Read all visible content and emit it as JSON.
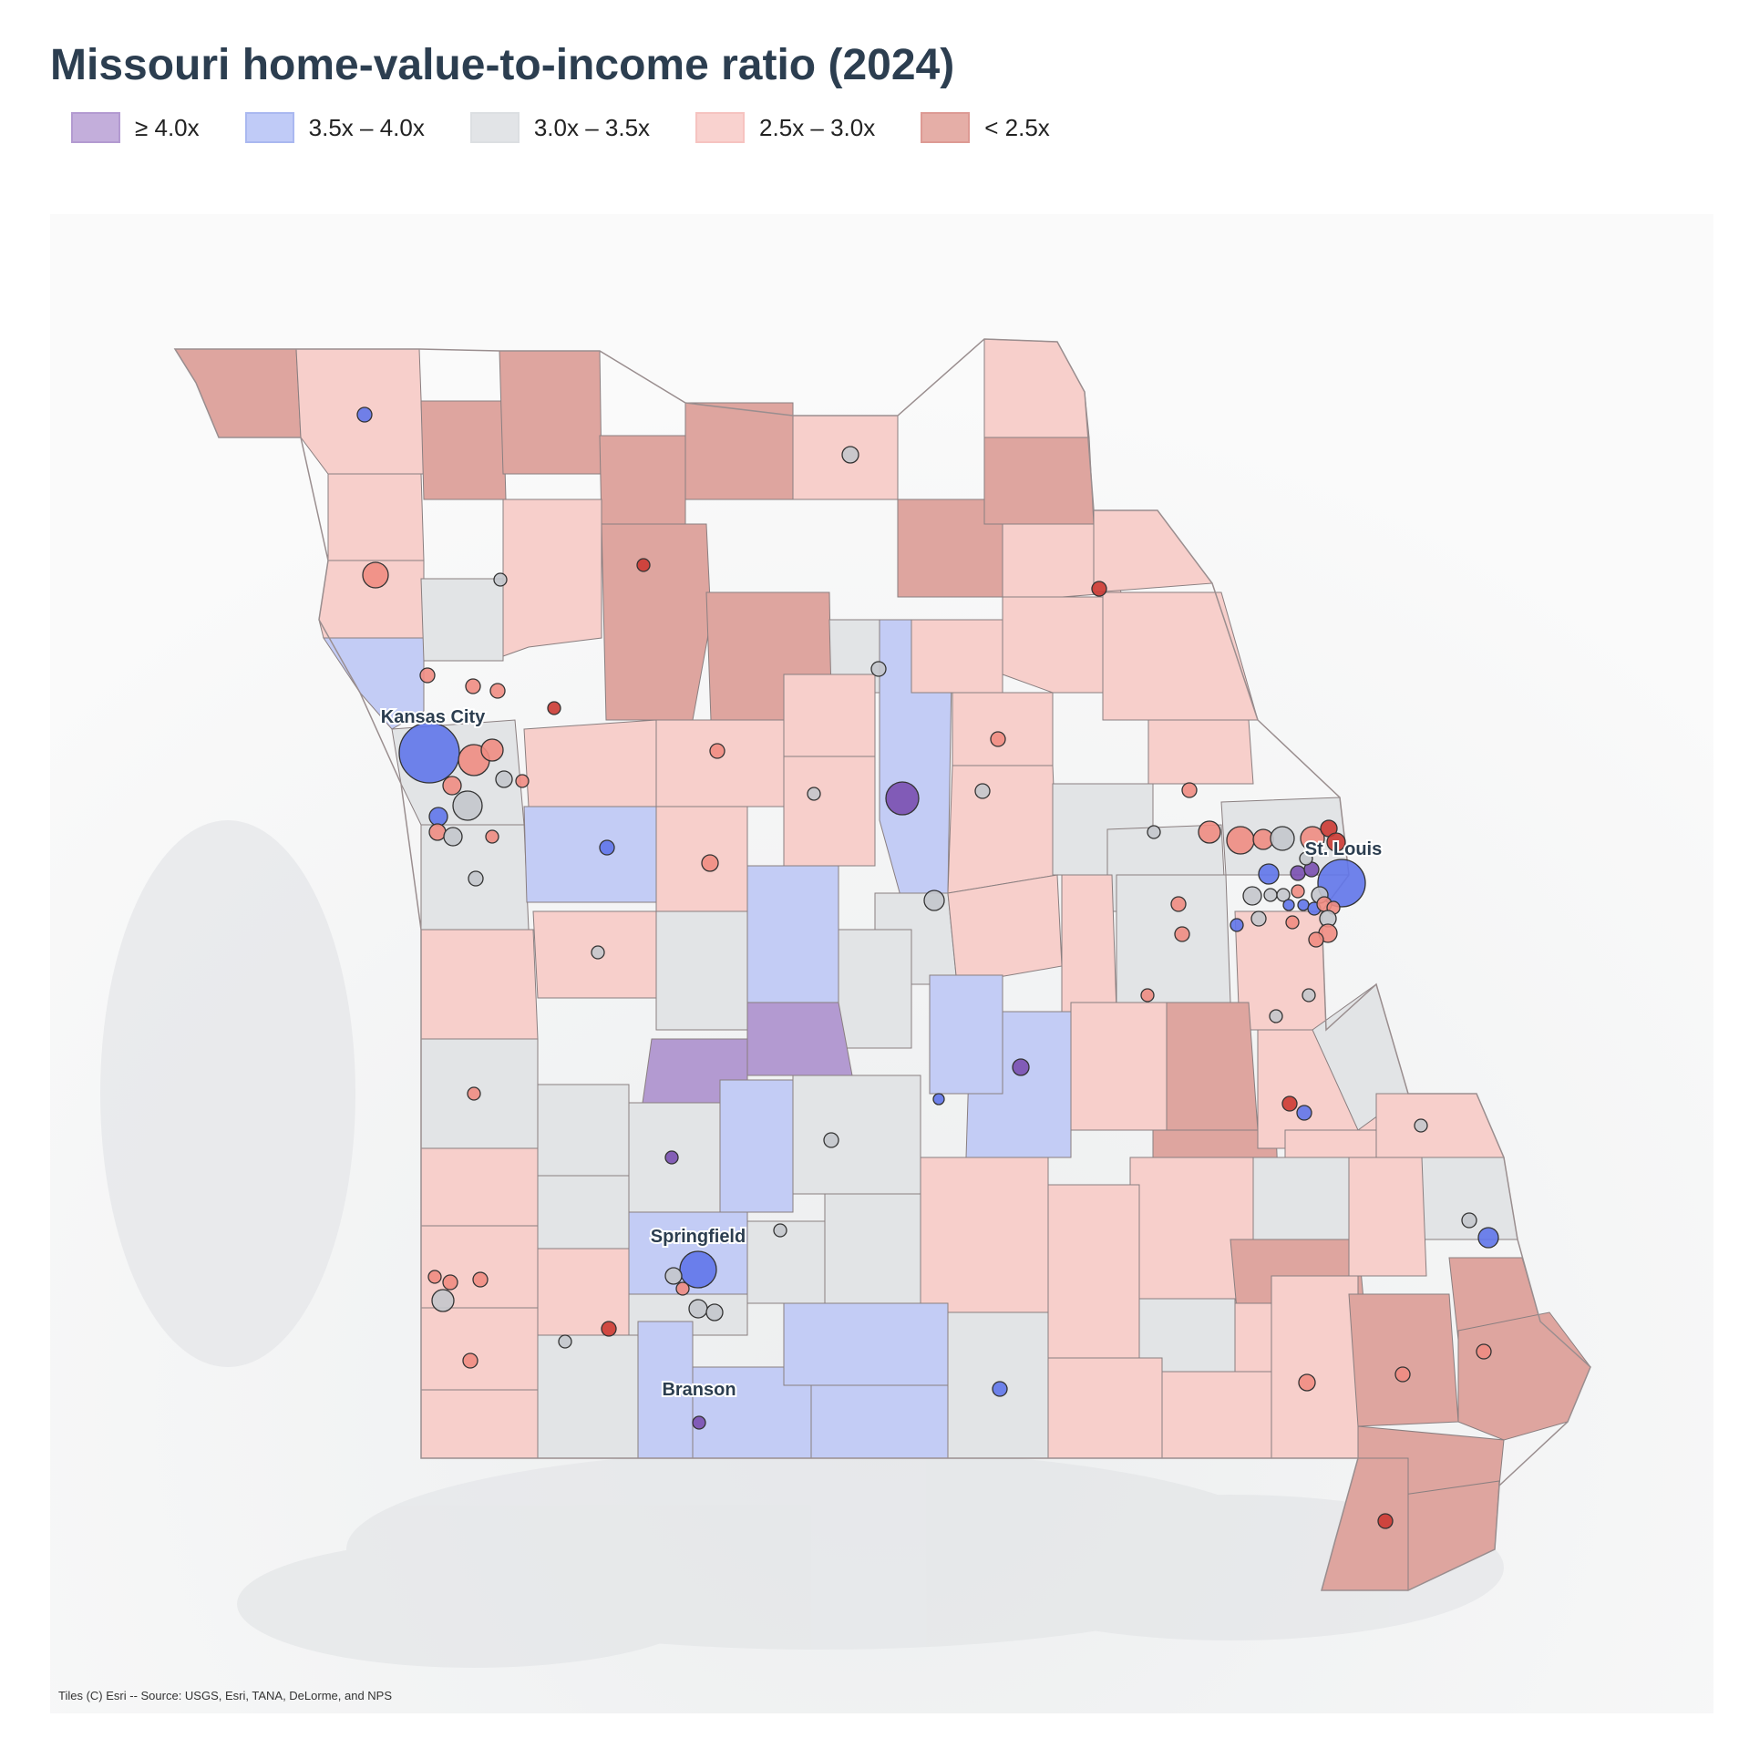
{
  "title": "Missouri home-value-to-income ratio (2024)",
  "legend": [
    {
      "label": "≥ 4.0x",
      "color": "#b39ad1"
    },
    {
      "label": "3.5x – 4.0x",
      "color": "#aab8f0"
    },
    {
      "label": "3.0x – 3.5x",
      "color": "#dcdfe2"
    },
    {
      "label": "2.5x – 3.0x",
      "color": "#f6c3c0"
    },
    {
      "label": "< 2.5x",
      "color": "#dd9a94"
    }
  ],
  "city_labels": [
    "Kansas City",
    "St. Louis",
    "Springfield",
    "Branson"
  ],
  "credit": "Tiles (C) Esri -- Source: USGS, Esri, TANA, DeLorme, and NPS",
  "marker_colors": {
    "ge4": "#7a4fb0",
    "r35_40": "#6076ea",
    "r30_35": "#c4c7cc",
    "r25_30": "#ef8c82",
    "lt25": "#cc3a33"
  }
}
